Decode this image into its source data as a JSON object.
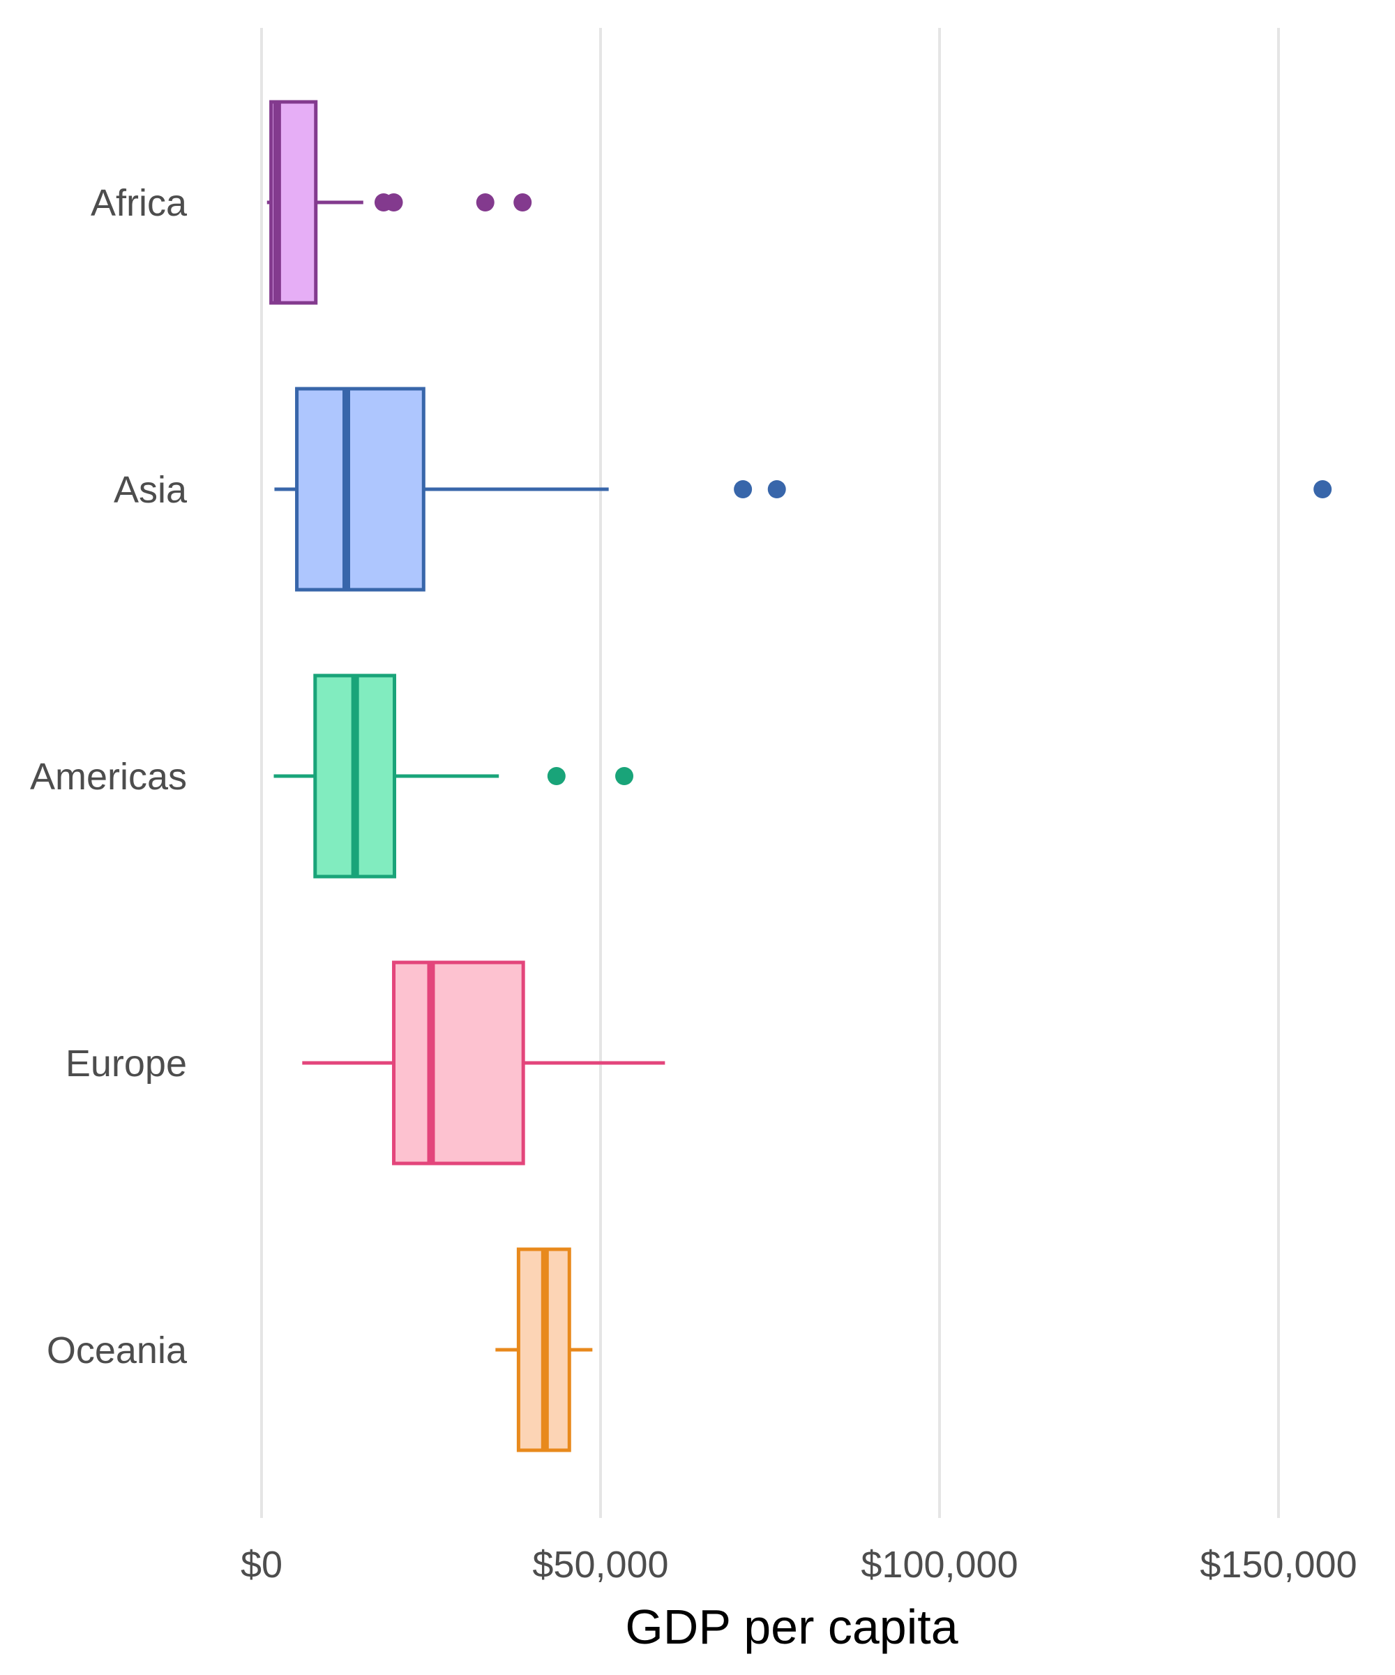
{
  "chart_data": {
    "type": "boxplot",
    "orientation": "horizontal",
    "xlabel": "GDP per capita",
    "ylabel": "",
    "title": "",
    "xlim": [
      -1000,
      160000
    ],
    "x_ticks": [
      0,
      50000,
      100000,
      150000
    ],
    "x_tick_labels": [
      "$0",
      "$50,000",
      "$100,000",
      "$150,000"
    ],
    "grid": "vertical major gridlines",
    "legend": "none",
    "categories": [
      "Africa",
      "Asia",
      "Americas",
      "Europe",
      "Oceania"
    ],
    "series": [
      {
        "name": "Africa",
        "min": 800,
        "q1": 1400,
        "median": 2300,
        "q3": 8000,
        "max": 15000,
        "outliers": [
          18000,
          19500,
          33000,
          38500
        ],
        "color": "#833a8e",
        "fill": "#e6aef6"
      },
      {
        "name": "Asia",
        "min": 1900,
        "q1": 5200,
        "median": 12500,
        "q3": 23900,
        "max": 51200,
        "outliers": [
          71000,
          76000,
          156500
        ],
        "color": "#3866aa",
        "fill": "#aec6fe"
      },
      {
        "name": "Americas",
        "min": 1800,
        "q1": 7900,
        "median": 13800,
        "q3": 19600,
        "max": 35000,
        "outliers": [
          43500,
          53500
        ],
        "color": "#19a479",
        "fill": "#81ecbf"
      },
      {
        "name": "Europe",
        "min": 6000,
        "q1": 19500,
        "median": 25000,
        "q3": 38600,
        "max": 59500,
        "outliers": [],
        "color": "#e3457b",
        "fill": "#fdc2d0"
      },
      {
        "name": "Oceania",
        "min": 34500,
        "q1": 37900,
        "median": 41800,
        "q3": 45400,
        "max": 48800,
        "outliers": [],
        "color": "#e8891c",
        "fill": "#fcd4b5"
      }
    ]
  }
}
